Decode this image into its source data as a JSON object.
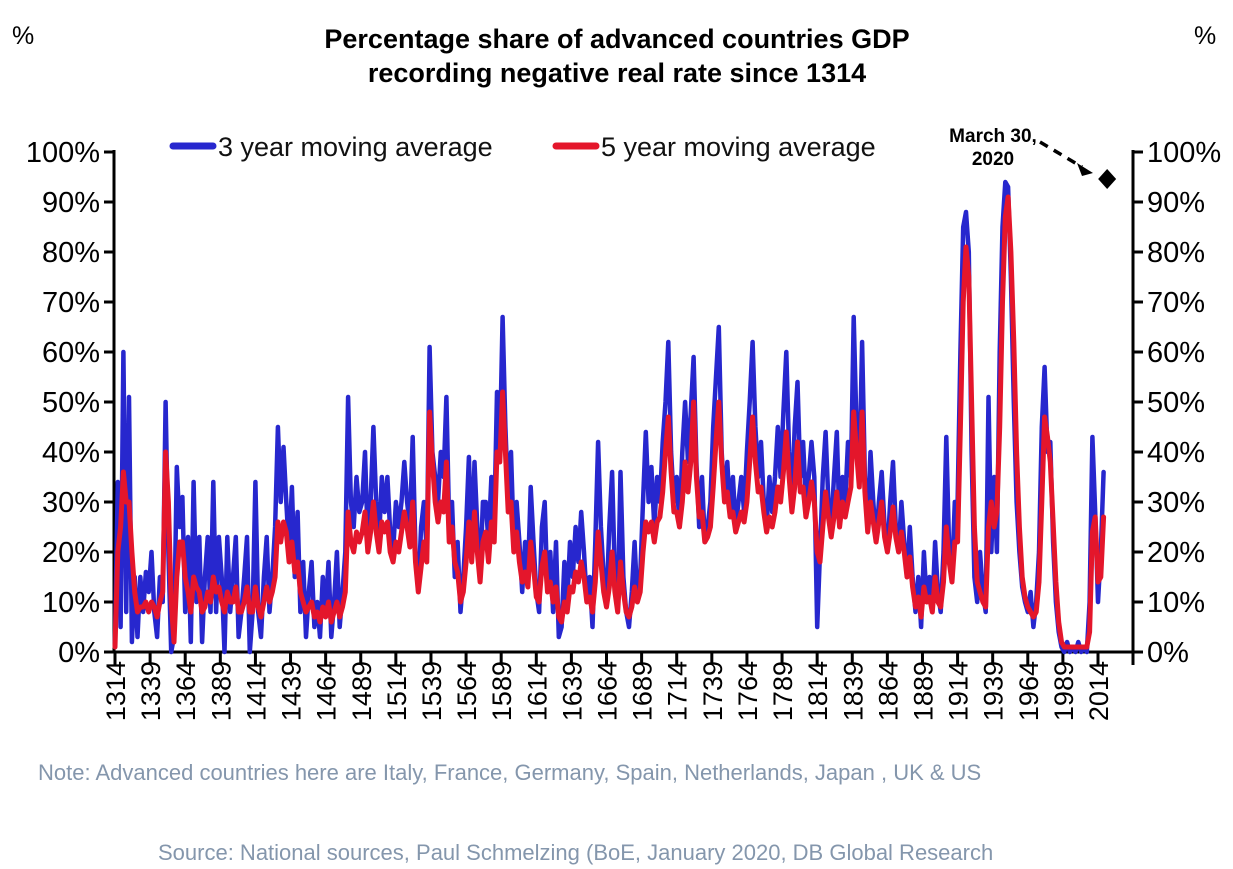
{
  "chart_data": {
    "type": "line",
    "title_lines": [
      "Percentage share of advanced countries GDP",
      "recording negative real rate since 1314"
    ],
    "unit_label_left": "%",
    "unit_label_right": "%",
    "grid": false,
    "legend_position": "top",
    "ylim": [
      0,
      100
    ],
    "xlim": [
      1314,
      2032
    ],
    "y_axis": {
      "tick_values": [
        0,
        10,
        20,
        30,
        40,
        50,
        60,
        70,
        80,
        90,
        100
      ],
      "tick_labels": [
        "0%",
        "10%",
        "20%",
        "30%",
        "40%",
        "50%",
        "60%",
        "70%",
        "80%",
        "90%",
        "100%"
      ]
    },
    "x_axis": {
      "tick_years": [
        1314,
        1339,
        1364,
        1389,
        1414,
        1439,
        1464,
        1489,
        1514,
        1539,
        1564,
        1589,
        1614,
        1639,
        1664,
        1689,
        1714,
        1739,
        1764,
        1789,
        1814,
        1839,
        1864,
        1889,
        1914,
        1939,
        1964,
        1989,
        2014
      ]
    },
    "series": [
      {
        "name": "3 year moving average",
        "color": "#2727CE",
        "start_year": 1314,
        "step_years": 2,
        "values": [
          2,
          34,
          5,
          60,
          8,
          51,
          2,
          15,
          3,
          15,
          8,
          16,
          12,
          20,
          8,
          3,
          15,
          10,
          50,
          20,
          0,
          3,
          37,
          25,
          31,
          8,
          23,
          2,
          34,
          10,
          23,
          2,
          15,
          23,
          8,
          34,
          8,
          23,
          15,
          0,
          23,
          8,
          15,
          23,
          3,
          8,
          15,
          23,
          0,
          8,
          34,
          8,
          3,
          15,
          23,
          8,
          15,
          25,
          45,
          30,
          41,
          30,
          20,
          33,
          15,
          28,
          8,
          18,
          3,
          12,
          18,
          5,
          10,
          3,
          15,
          8,
          18,
          3,
          10,
          20,
          5,
          12,
          20,
          51,
          30,
          25,
          35,
          28,
          30,
          40,
          22,
          30,
          45,
          30,
          22,
          35,
          28,
          35,
          24,
          20,
          30,
          25,
          30,
          38,
          30,
          25,
          43,
          20,
          12,
          25,
          30,
          20,
          61,
          40,
          35,
          30,
          40,
          35,
          51,
          25,
          30,
          15,
          22,
          8,
          15,
          25,
          39,
          20,
          38,
          25,
          15,
          30,
          30,
          22,
          35,
          25,
          52,
          40,
          67,
          45,
          30,
          40,
          22,
          30,
          22,
          12,
          22,
          15,
          33,
          22,
          12,
          8,
          25,
          30,
          12,
          20,
          8,
          22,
          3,
          5,
          18,
          10,
          22,
          15,
          25,
          18,
          28,
          20,
          10,
          15,
          5,
          22,
          42,
          25,
          15,
          10,
          25,
          36,
          15,
          8,
          36,
          15,
          8,
          5,
          12,
          22,
          10,
          15,
          30,
          44,
          30,
          37,
          25,
          35,
          30,
          42,
          50,
          62,
          40,
          30,
          35,
          25,
          40,
          50,
          38,
          48,
          59,
          38,
          25,
          35,
          22,
          25,
          30,
          45,
          55,
          65,
          40,
          30,
          38,
          28,
          35,
          25,
          30,
          35,
          28,
          40,
          50,
          62,
          45,
          35,
          42,
          30,
          25,
          35,
          28,
          35,
          45,
          35,
          48,
          60,
          40,
          30,
          45,
          54,
          35,
          42,
          30,
          35,
          42,
          35,
          5,
          20,
          35,
          44,
          30,
          25,
          35,
          44,
          25,
          35,
          30,
          42,
          35,
          67,
          45,
          35,
          62,
          35,
          25,
          40,
          30,
          22,
          30,
          36,
          25,
          20,
          30,
          38,
          25,
          20,
          30,
          22,
          15,
          25,
          15,
          8,
          15,
          5,
          20,
          10,
          15,
          8,
          22,
          12,
          8,
          20,
          43,
          20,
          15,
          30,
          30,
          60,
          85,
          88,
          80,
          40,
          15,
          10,
          20,
          12,
          8,
          51,
          20,
          35,
          20,
          60,
          85,
          94,
          93,
          75,
          50,
          30,
          20,
          13,
          10,
          8,
          12,
          5,
          10,
          20,
          45,
          57,
          40,
          42,
          22,
          10,
          4,
          1,
          0,
          2,
          0,
          1,
          0,
          2,
          0,
          1,
          0,
          10,
          43,
          28,
          10,
          20,
          36
        ]
      },
      {
        "name": "5 year moving average",
        "color": "#E4162B",
        "start_year": 1314,
        "step_years": 2,
        "values": [
          1,
          20,
          25,
          36,
          30,
          30,
          20,
          12,
          8,
          9,
          9,
          10,
          8,
          10,
          9,
          7,
          10,
          12,
          40,
          30,
          10,
          2,
          15,
          22,
          22,
          15,
          12,
          8,
          15,
          13,
          12,
          8,
          9,
          12,
          10,
          15,
          12,
          13,
          10,
          8,
          12,
          10,
          10,
          13,
          8,
          8,
          10,
          13,
          8,
          8,
          13,
          9,
          7,
          10,
          13,
          10,
          12,
          15,
          26,
          22,
          26,
          24,
          18,
          22,
          16,
          18,
          12,
          10,
          8,
          9,
          10,
          7,
          8,
          6,
          9,
          7,
          10,
          6,
          8,
          10,
          7,
          9,
          12,
          28,
          22,
          20,
          24,
          22,
          24,
          28,
          20,
          24,
          30,
          24,
          20,
          26,
          24,
          26,
          20,
          18,
          22,
          20,
          24,
          28,
          25,
          21,
          30,
          18,
          12,
          17,
          22,
          18,
          48,
          38,
          30,
          26,
          30,
          28,
          38,
          22,
          25,
          18,
          16,
          10,
          12,
          18,
          26,
          18,
          28,
          20,
          14,
          22,
          24,
          18,
          26,
          22,
          40,
          38,
          52,
          40,
          28,
          30,
          20,
          24,
          18,
          14,
          16,
          13,
          22,
          17,
          11,
          10,
          17,
          20,
          12,
          14,
          10,
          13,
          7,
          6,
          10,
          8,
          13,
          12,
          16,
          14,
          18,
          15,
          10,
          11,
          8,
          14,
          24,
          18,
          12,
          9,
          13,
          20,
          12,
          8,
          18,
          12,
          8,
          7,
          9,
          13,
          10,
          12,
          20,
          26,
          24,
          26,
          22,
          26,
          27,
          32,
          40,
          47,
          36,
          28,
          28,
          25,
          30,
          38,
          32,
          38,
          50,
          35,
          27,
          28,
          22,
          23,
          25,
          33,
          42,
          50,
          38,
          30,
          32,
          27,
          28,
          24,
          26,
          28,
          26,
          30,
          38,
          47,
          38,
          32,
          33,
          28,
          24,
          27,
          25,
          28,
          33,
          30,
          36,
          44,
          35,
          28,
          33,
          42,
          32,
          33,
          27,
          30,
          34,
          30,
          20,
          18,
          25,
          32,
          27,
          23,
          27,
          32,
          25,
          30,
          27,
          30,
          33,
          48,
          40,
          33,
          48,
          32,
          24,
          30,
          26,
          22,
          26,
          30,
          23,
          20,
          24,
          29,
          23,
          20,
          24,
          20,
          15,
          19,
          13,
          9,
          11,
          7,
          13,
          10,
          11,
          8,
          15,
          10,
          9,
          14,
          25,
          18,
          14,
          22,
          22,
          45,
          70,
          81,
          75,
          50,
          25,
          14,
          12,
          10,
          9,
          25,
          30,
          25,
          28,
          45,
          70,
          87,
          91,
          80,
          62,
          40,
          25,
          15,
          11,
          9,
          8,
          7,
          8,
          14,
          30,
          47,
          43,
          38,
          26,
          14,
          6,
          2,
          1,
          1,
          1,
          1,
          1,
          1,
          1,
          1,
          1,
          4,
          24,
          27,
          14,
          15,
          27
        ]
      }
    ],
    "annotation": {
      "label_lines": [
        "March 30,",
        "2020"
      ],
      "marker": "diamond",
      "year": 2020.5,
      "value": 94.6,
      "color": "#000000"
    },
    "note": "Note: Advanced countries here are Italy, France, Germany, Spain, Netherlands, Japan , UK & US",
    "source": "Source:  National sources, Paul Schmelzing (BoE, January 2020, DB Global Research"
  },
  "colors": {
    "axis": "#000000",
    "note_source": "#8496AC",
    "annotation_arrow": "#000000"
  }
}
